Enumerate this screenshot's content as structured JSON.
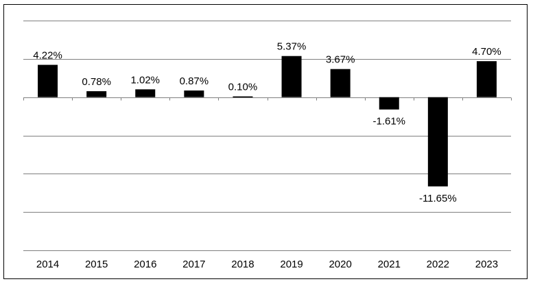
{
  "chart_data": {
    "type": "bar",
    "title": "",
    "xlabel": "",
    "ylabel": "",
    "categories": [
      "2014",
      "2015",
      "2016",
      "2017",
      "2018",
      "2019",
      "2020",
      "2021",
      "2022",
      "2023"
    ],
    "values": [
      4.22,
      0.78,
      1.02,
      0.87,
      0.1,
      5.37,
      3.67,
      -1.61,
      -11.65,
      4.7
    ],
    "data_labels": [
      "4.22%",
      "0.78%",
      "1.02%",
      "0.87%",
      "0.10%",
      "5.37%",
      "3.67%",
      "-1.61%",
      "-11.65%",
      "4.70%"
    ],
    "ylim": [
      -20,
      10
    ],
    "grid": true,
    "legend": "none",
    "bar_color": "#000000",
    "grid_color": "#7f7f7f"
  }
}
